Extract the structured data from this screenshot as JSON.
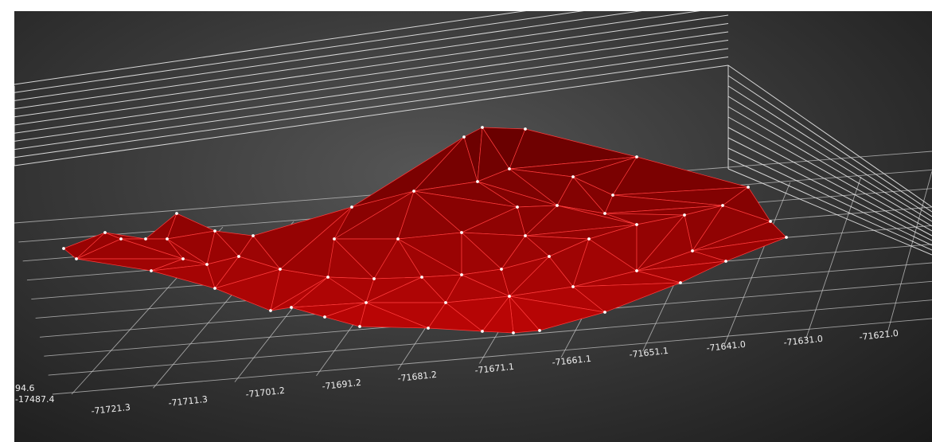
{
  "viewer": {
    "background": "#2a2a2a",
    "surface_color": "#8a0000",
    "edge_color": "#ff3b3b",
    "vertex_color": "#ffffff",
    "grid_color": "#c8c8c8"
  },
  "x_axis": {
    "ticks": [
      "-71721.3",
      "-71711.3",
      "-71701.2",
      "-71691.2",
      "-71681.2",
      "-71671.1",
      "-71661.1",
      "-71651.1",
      "-71641.0",
      "-71631.0",
      "-71621.0"
    ]
  },
  "y_axis": {
    "ticks": [
      "-17487.4"
    ]
  },
  "z_axis": {
    "ticks": [
      "94.6"
    ]
  }
}
